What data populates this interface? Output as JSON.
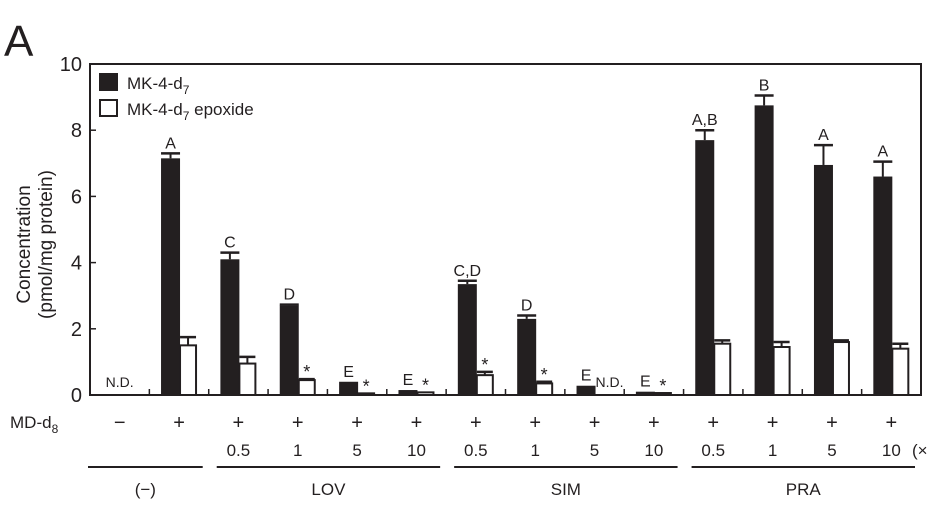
{
  "panel_label": "A",
  "chart_data": {
    "type": "bar",
    "title": "",
    "ylabel_line1": "Concentration",
    "ylabel_line2": "(pmol/mg protein)",
    "ylim": [
      0,
      10
    ],
    "yticks": [
      "0",
      "2",
      "4",
      "6",
      "8",
      "10"
    ],
    "legend": {
      "placement": "top-left",
      "entries": [
        {
          "name": "MK-4-d",
          "sub": "7",
          "suffix": "",
          "fill": "#231f20"
        },
        {
          "name": "MK-4-d",
          "sub": "7",
          "suffix": " epoxide",
          "fill": "#ffffff"
        }
      ]
    },
    "row_label": "MD-d",
    "row_label_sub": "8",
    "unit_label": "(×",
    "categories": [
      {
        "md": "−",
        "dose": "",
        "group": "(−)"
      },
      {
        "md": "+",
        "dose": "",
        "group": "(−)"
      },
      {
        "md": "+",
        "dose": "0.5",
        "group": "LOV"
      },
      {
        "md": "+",
        "dose": "1",
        "group": "LOV"
      },
      {
        "md": "+",
        "dose": "5",
        "group": "LOV"
      },
      {
        "md": "+",
        "dose": "10",
        "group": "LOV"
      },
      {
        "md": "+",
        "dose": "0.5",
        "group": "SIM"
      },
      {
        "md": "+",
        "dose": "1",
        "group": "SIM"
      },
      {
        "md": "+",
        "dose": "5",
        "group": "SIM"
      },
      {
        "md": "+",
        "dose": "10",
        "group": "SIM"
      },
      {
        "md": "+",
        "dose": "0.5",
        "group": "PRA"
      },
      {
        "md": "+",
        "dose": "1",
        "group": "PRA"
      },
      {
        "md": "+",
        "dose": "5",
        "group": "PRA"
      },
      {
        "md": "+",
        "dose": "10",
        "group": "PRA"
      }
    ],
    "groups": [
      {
        "label": "(−)",
        "from": 0,
        "to": 1
      },
      {
        "label": "LOV",
        "from": 2,
        "to": 5
      },
      {
        "label": "SIM",
        "from": 6,
        "to": 9
      },
      {
        "label": "PRA",
        "from": 10,
        "to": 13
      }
    ],
    "series": [
      {
        "name": "MK-4-d7",
        "values": [
          null,
          7.15,
          4.1,
          2.7,
          0.4,
          0.15,
          3.35,
          2.3,
          0.28,
          0.1,
          7.7,
          8.75,
          6.95,
          6.6
        ],
        "errors": [
          null,
          0.15,
          0.2,
          0.03,
          0,
          0,
          0.1,
          0.1,
          0,
          0,
          0.3,
          0.3,
          0.6,
          0.45
        ],
        "annotations": [
          "N.D.",
          "A",
          "C",
          "D",
          "E",
          "E",
          "C,D",
          "D",
          "E",
          "E",
          "A,B",
          "B",
          "A",
          "A"
        ]
      },
      {
        "name": "MK-4-d7 epoxide",
        "values": [
          null,
          1.5,
          0.95,
          0.45,
          0.05,
          0.08,
          0.6,
          0.35,
          null,
          0.06,
          1.55,
          1.45,
          1.6,
          1.4
        ],
        "errors": [
          null,
          0.25,
          0.2,
          0.03,
          0,
          0,
          0.1,
          0.05,
          0,
          0,
          0.1,
          0.15,
          0.05,
          0.15
        ],
        "annotations": [
          "",
          "",
          "",
          "*",
          "*",
          "*",
          "*",
          "*",
          "N.D.",
          "*",
          "",
          "",
          "",
          ""
        ]
      }
    ]
  }
}
